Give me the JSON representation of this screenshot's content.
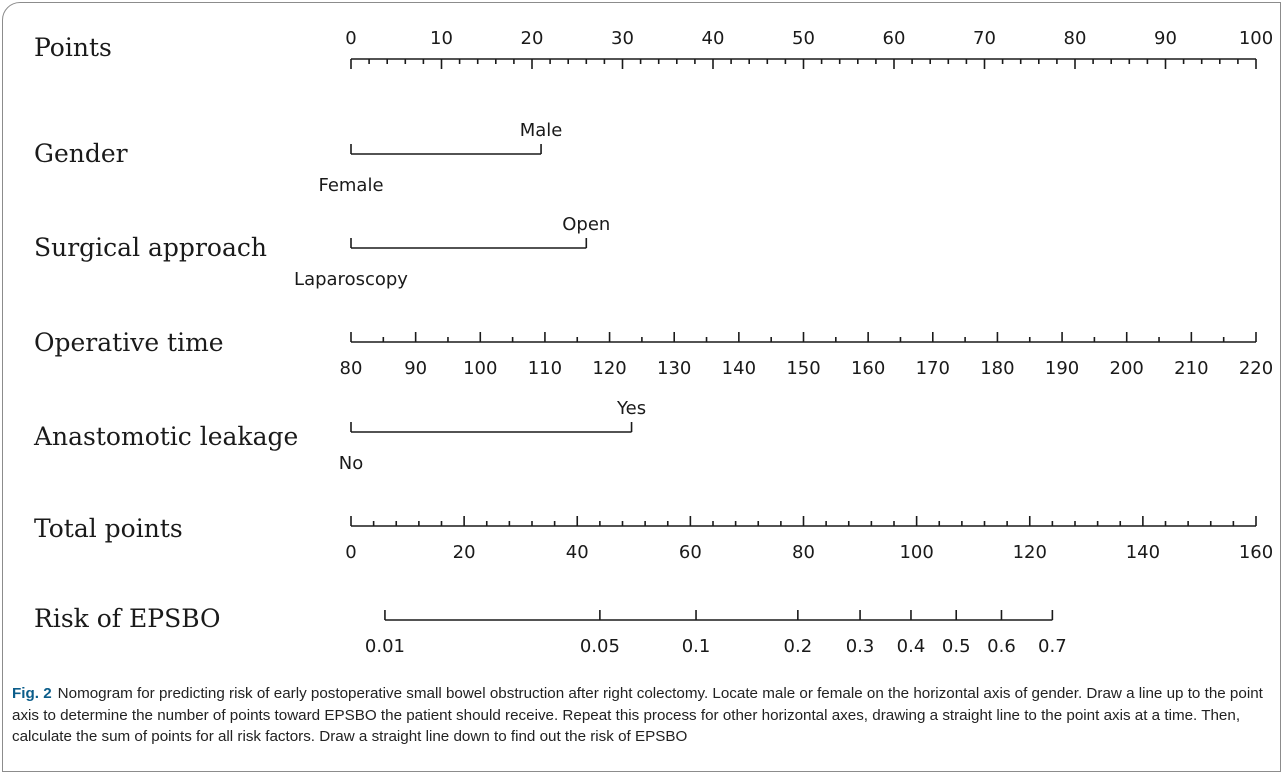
{
  "chart_data": {
    "type": "nomogram",
    "rows": [
      {
        "label": "Points",
        "kind": "scale",
        "scale_min": 0,
        "scale_max": 100,
        "minor_step": 2,
        "ticks": [
          0,
          10,
          20,
          30,
          40,
          50,
          60,
          70,
          80,
          90,
          100
        ],
        "tick_labels_position": "above"
      },
      {
        "label": "Gender",
        "kind": "categorical",
        "levels": [
          {
            "name": "Female",
            "points": 0,
            "label_position": "below"
          },
          {
            "name": "Male",
            "points": 21,
            "label_position": "above"
          }
        ]
      },
      {
        "label": "Surgical approach",
        "kind": "categorical",
        "levels": [
          {
            "name": "Laparoscopy",
            "points": 0,
            "label_position": "below"
          },
          {
            "name": "Open",
            "points": 26,
            "label_position": "above"
          }
        ]
      },
      {
        "label": "Operative time",
        "kind": "continuous",
        "value_min": 80,
        "value_max": 220,
        "ticks": [
          80,
          90,
          100,
          110,
          120,
          130,
          140,
          150,
          160,
          170,
          180,
          190,
          200,
          210,
          220
        ],
        "points_min": 0,
        "points_max": 100,
        "tick_labels_position": "below"
      },
      {
        "label": "Anastomotic leakage",
        "kind": "categorical",
        "levels": [
          {
            "name": "No",
            "points": 0,
            "label_position": "below"
          },
          {
            "name": "Yes",
            "points": 31,
            "label_position": "above"
          }
        ]
      },
      {
        "label": "Total points",
        "kind": "scale",
        "scale_min": 0,
        "scale_max": 160,
        "minor_step": 4,
        "ticks": [
          0,
          20,
          40,
          60,
          80,
          100,
          120,
          140,
          160
        ],
        "tick_labels_position": "below"
      },
      {
        "label": "Risk of EPSBO",
        "kind": "risk",
        "ticks": [
          {
            "label": "0.01",
            "total_points": 6
          },
          {
            "label": "0.05",
            "total_points": 44
          },
          {
            "label": "0.1",
            "total_points": 61
          },
          {
            "label": "0.2",
            "total_points": 79
          },
          {
            "label": "0.3",
            "total_points": 90
          },
          {
            "label": "0.4",
            "total_points": 99
          },
          {
            "label": "0.5",
            "total_points": 107
          },
          {
            "label": "0.6",
            "total_points": 115
          },
          {
            "label": "0.7",
            "total_points": 124
          }
        ],
        "line_from_total_points": 6,
        "line_to_total_points": 124,
        "tick_labels_position": "below"
      }
    ]
  },
  "caption": {
    "figure_label": "Fig. 2",
    "text": "Nomogram for predicting risk of early postoperative small bowel obstruction after right colectomy. Locate male or female on the horizontal axis of gender. Draw a line up to the point axis to determine the number of points toward EPSBO the patient should receive. Repeat this process for other horizontal axes, drawing a straight line to the point axis at a time. Then, calculate the sum of points for all risk factors. Draw a straight line down to find out the risk of EPSBO"
  }
}
